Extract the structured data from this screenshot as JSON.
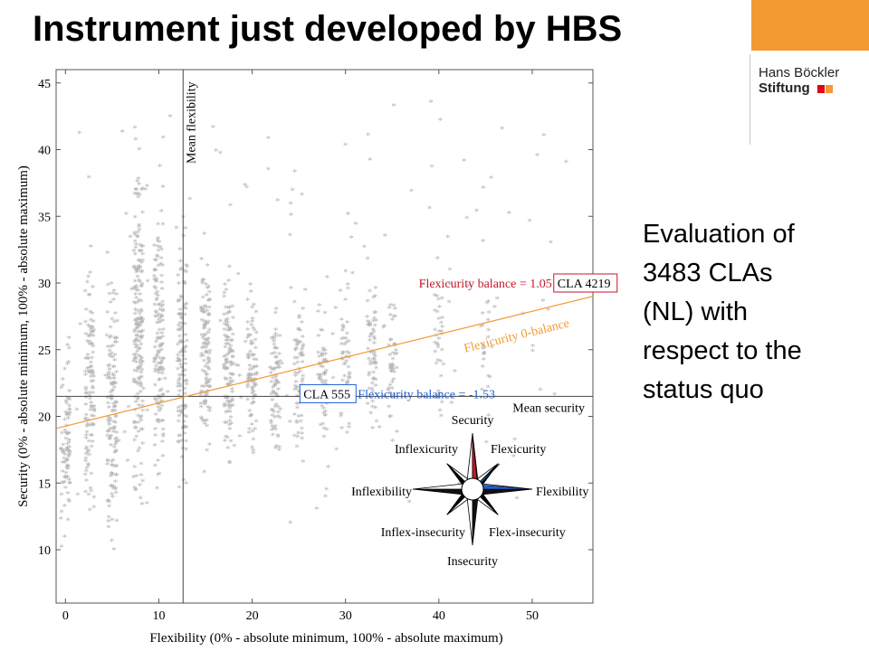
{
  "slide": {
    "title": "Instrument just developed by HBS",
    "side_text_lines": [
      "Evaluation of",
      "3483 CLAs",
      "(NL) with",
      "respect to the",
      "status quo"
    ]
  },
  "logo": {
    "line1": "Hans Böckler",
    "line2": "Stiftung"
  },
  "colors": {
    "accent_orange": "#f39a32",
    "logo_red": "#e2001a",
    "logo_orange": "#f39a32",
    "balance_red": "#c0182b",
    "balance_blue": "#1f5fd6",
    "zero_balance_line": "#f39a32",
    "points": "#b4b4b4"
  },
  "chart_data": {
    "type": "scatter",
    "xlabel": "Flexibility (0% - absolute minimum, 100% - absolute maximum)",
    "ylabel": "Security (0% - absolute minimum, 100% - absolute maximum)",
    "xlim": [
      -1,
      56.5
    ],
    "ylim": [
      6,
      46
    ],
    "x_ticks": [
      0,
      10,
      20,
      30,
      40,
      50
    ],
    "y_ticks": [
      10,
      15,
      20,
      25,
      30,
      35,
      40,
      45
    ],
    "grid": false,
    "marker": "star",
    "n_points": 3483,
    "mean_flexibility": 12.6,
    "mean_security": 21.5,
    "mean_flexibility_label": "Mean flexibility",
    "mean_security_label": "Mean security",
    "zero_balance_line": {
      "label": "Flexicurity 0-balance",
      "x": [
        -1,
        56.5
      ],
      "y": [
        19.1,
        29.0
      ]
    },
    "annotations": [
      {
        "box": "CLA 4219",
        "text": "Flexicurity balance = 1.05",
        "x": 52.5,
        "y": 30.0,
        "color": "#c0182b"
      },
      {
        "box": "CLA 555",
        "text": "Flexicurity balance = -1.53",
        "x": 25.5,
        "y": 21.7,
        "color": "#1f5fd6"
      }
    ],
    "compass": {
      "labels": {
        "n": "Security",
        "ne": "Flexicurity",
        "e": "Flexibility",
        "se": "Flex-insecurity",
        "s": "Insecurity",
        "sw": "Inflex-insecurity",
        "w": "Inflexibility",
        "nw": "Inflexicurity"
      }
    },
    "point_columns": [
      {
        "x": 0,
        "y_range": [
          9,
          27
        ],
        "count": 90
      },
      {
        "x": 2.6,
        "y_range": [
          11,
          33
        ],
        "count": 120
      },
      {
        "x": 5,
        "y_range": [
          8,
          32
        ],
        "count": 140
      },
      {
        "x": 7.8,
        "y_range": [
          9,
          44
        ],
        "count": 200
      },
      {
        "x": 10,
        "y_range": [
          11,
          40
        ],
        "count": 150
      },
      {
        "x": 12.5,
        "y_range": [
          13,
          36
        ],
        "count": 120
      },
      {
        "x": 15,
        "y_range": [
          14,
          35
        ],
        "count": 120
      },
      {
        "x": 17.5,
        "y_range": [
          14,
          33
        ],
        "count": 120
      },
      {
        "x": 20,
        "y_range": [
          15,
          31
        ],
        "count": 90
      },
      {
        "x": 22.5,
        "y_range": [
          15,
          30
        ],
        "count": 80
      },
      {
        "x": 25,
        "y_range": [
          16,
          30
        ],
        "count": 70
      },
      {
        "x": 27.5,
        "y_range": [
          16,
          29
        ],
        "count": 60
      },
      {
        "x": 30,
        "y_range": [
          16,
          33
        ],
        "count": 55
      },
      {
        "x": 32.8,
        "y_range": [
          17,
          34
        ],
        "count": 60
      },
      {
        "x": 35,
        "y_range": [
          17,
          31
        ],
        "count": 45
      },
      {
        "x": 40,
        "y_range": [
          17,
          34
        ],
        "count": 35
      },
      {
        "x": 45,
        "y_range": [
          19,
          32
        ],
        "count": 20
      }
    ]
  }
}
